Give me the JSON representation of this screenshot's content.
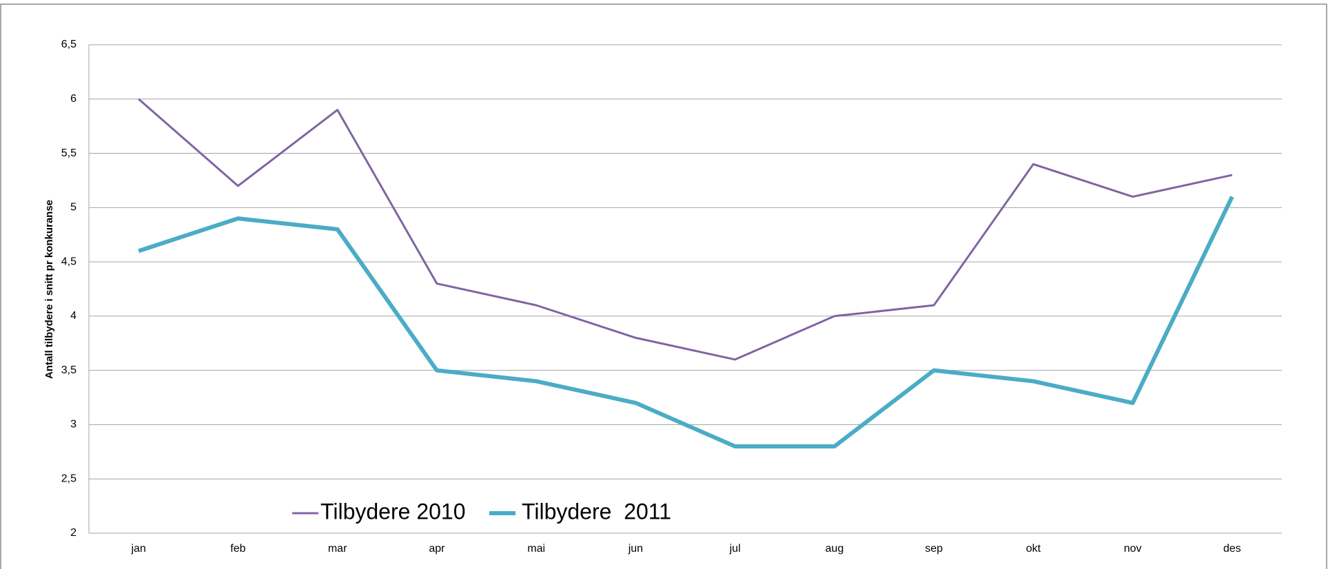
{
  "chart_data": {
    "type": "line",
    "y_label": "Antall tilbydere i snitt pr konkuranse",
    "categories": [
      "jan",
      "feb",
      "mar",
      "apr",
      "mai",
      "jun",
      "jul",
      "aug",
      "sep",
      "okt",
      "nov",
      "des"
    ],
    "series": [
      {
        "name": "Tilbydere 2010",
        "color": "#8064a2",
        "values": [
          6,
          5.2,
          5.9,
          4.3,
          4.1,
          3.8,
          3.6,
          4.0,
          4.1,
          5.4,
          5.1,
          5.3
        ]
      },
      {
        "name": "Tilbydere  2011",
        "color": "#4bacc6",
        "values": [
          4.6,
          4.9,
          4.8,
          3.5,
          3.4,
          3.2,
          2.8,
          2.8,
          3.5,
          3.4,
          3.2,
          5.1
        ]
      }
    ],
    "ylim": [
      2,
      6.5
    ],
    "yticks": [
      2,
      {
        "value": 2.5,
        "label": "2,5"
      },
      3,
      {
        "value": 3.5,
        "label": "3,5"
      },
      4,
      {
        "value": 4.5,
        "label": "4,5"
      },
      5,
      {
        "value": 5.5,
        "label": "5,5"
      },
      6,
      {
        "value": 6.5,
        "label": "6,5"
      }
    ],
    "grid": true
  }
}
